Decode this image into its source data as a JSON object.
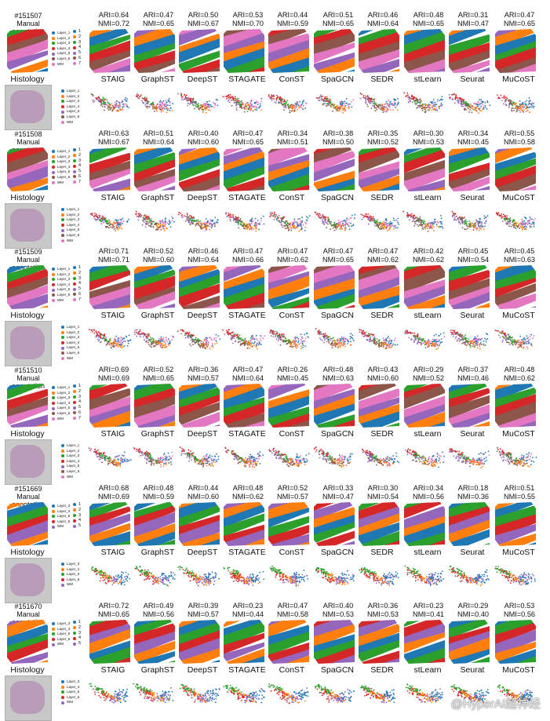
{
  "palette": [
    "#1f77b4",
    "#ff7f0e",
    "#2ca02c",
    "#d62728",
    "#9467bd",
    "#8c564b",
    "#e377c2"
  ],
  "methods": [
    "STAIG",
    "GraphST",
    "DeepST",
    "STAGATE",
    "ConST",
    "SpaGCN",
    "SEDR",
    "stLearn",
    "Seurat",
    "MuCoST"
  ],
  "histology_label": "Histology",
  "annotation_label": "Manual annotation",
  "watermark": "@HyperAI超神经",
  "samples": [
    {
      "id": "#151507",
      "legend": [
        "Layer_1",
        "Layer_2",
        "Layer_3",
        "Layer_4",
        "Layer_5",
        "Layer_6",
        "WM"
      ],
      "cluster_ids": [
        "1",
        "2",
        "3",
        "4",
        "5",
        "6",
        "7"
      ],
      "ari": [
        "ARI=0.64",
        "ARI=0.47",
        "ARI=0.50",
        "ARI=0.53",
        "ARI=0.44",
        "ARI=0.51",
        "ARI=0.46",
        "ARI=0.48",
        "ARI=0.31",
        "ARI=0.47"
      ],
      "nmi": [
        "NMI=0.72",
        "NMI=0.65",
        "NMI=0.67",
        "NMI=0.70",
        "NMI=0.59",
        "NMI=0.65",
        "NMI=0.64",
        "NMI=0.65",
        "NMI=0.47",
        "NMI=0.65"
      ]
    },
    {
      "id": "#151508",
      "legend": [
        "Layer_1",
        "Layer_2",
        "Layer_3",
        "Layer_4",
        "Layer_5",
        "Layer_6",
        "WM"
      ],
      "cluster_ids": [
        "1",
        "2",
        "3",
        "4",
        "5",
        "6",
        "7"
      ],
      "ari": [
        "ARI=0.63",
        "ARI=0.51",
        "ARI=0.40",
        "ARI=0.47",
        "ARI=0.34",
        "ARI=0.38",
        "ARI=0.35",
        "ARI=0.30",
        "ARI=0.34",
        "ARI=0.55"
      ],
      "nmi": [
        "NMI=0.67",
        "NMI=0.64",
        "NMI=0.60",
        "NMI=0.65",
        "NMI=0.51",
        "NMI=0.50",
        "NMI=0.52",
        "NMI=0.53",
        "NMI=0.45",
        "NMI=0.58"
      ]
    },
    {
      "id": "#151509",
      "legend": [
        "Layer_1",
        "Layer_2",
        "Layer_3",
        "Layer_4",
        "Layer_5",
        "Layer_6",
        "WM"
      ],
      "cluster_ids": [
        "1",
        "2",
        "3",
        "4",
        "5",
        "6",
        "7"
      ],
      "ari": [
        "ARI=0.71",
        "ARI=0.52",
        "ARI=0.46",
        "ARI=0.47",
        "ARI=0.47",
        "ARI=0.47",
        "ARI=0.47",
        "ARI=0.42",
        "ARI=0.45",
        "ARI=0.45"
      ],
      "nmi": [
        "NMI=0.71",
        "NMI=0.60",
        "NMI=0.64",
        "NMI=0.66",
        "NMI=0.62",
        "NMI=0.65",
        "NMI=0.62",
        "NMI=0.62",
        "NMI=0.54",
        "NMI=0.63"
      ]
    },
    {
      "id": "#151510",
      "legend": [
        "Layer_1",
        "Layer_2",
        "Layer_3",
        "Layer_4",
        "Layer_5",
        "Layer_6",
        "WM"
      ],
      "cluster_ids": [
        "1",
        "2",
        "3",
        "4",
        "5",
        "6",
        "7"
      ],
      "ari": [
        "ARI=0.69",
        "ARI=0.52",
        "ARI=0.36",
        "ARI=0.47",
        "ARI=0.26",
        "ARI=0.48",
        "ARI=0.43",
        "ARI=0.29",
        "ARI=0.37",
        "ARI=0.48"
      ],
      "nmi": [
        "NMI=0.69",
        "NMI=0.65",
        "NMI=0.57",
        "NMI=0.64",
        "NMI=0.45",
        "NMI=0.63",
        "NMI=0.60",
        "NMI=0.52",
        "NMI=0.46",
        "NMI=0.62"
      ]
    },
    {
      "id": "#151669",
      "legend": [
        "Layer_3",
        "Layer_4",
        "Layer_5",
        "Layer_6",
        "WM"
      ],
      "cluster_ids": [
        "1",
        "2",
        "3",
        "4",
        "5"
      ],
      "ari": [
        "ARI=0.68",
        "ARI=0.48",
        "ARI=0.44",
        "ARI=0.48",
        "ARI=0.52",
        "ARI=0.33",
        "ARI=0.30",
        "ARI=0.34",
        "ARI=0.18",
        "ARI=0.51"
      ],
      "nmi": [
        "NMI=0.69",
        "NMI=0.59",
        "NMI=0.60",
        "NMI=0.62",
        "NMI=0.57",
        "NMI=0.47",
        "NMI=0.54",
        "NMI=0.56",
        "NMI=0.36",
        "NMI=0.55"
      ]
    },
    {
      "id": "#151670",
      "legend": [
        "Layer_3",
        "Layer_4",
        "Layer_5",
        "Layer_6",
        "WM"
      ],
      "cluster_ids": [
        "1",
        "2",
        "3",
        "4",
        "5"
      ],
      "ari": [
        "ARI=0.72",
        "ARI=0.49",
        "ARI=0.39",
        "ARI=0.23",
        "ARI=0.47",
        "ARI=0.40",
        "ARI=0.36",
        "ARI=0.23",
        "ARI=0.29",
        "ARI=0.53"
      ],
      "nmi": [
        "NMI=0.65",
        "NMI=0.56",
        "NMI=0.57",
        "NMI=0.44",
        "NMI=0.58",
        "NMI=0.53",
        "NMI=0.53",
        "NMI=0.41",
        "NMI=0.40",
        "NMI=0.56"
      ]
    }
  ],
  "chart_data": {
    "type": "table",
    "columns": [
      "STAIG",
      "GraphST",
      "DeepST",
      "STAGATE",
      "ConST",
      "SpaGCN",
      "SEDR",
      "stLearn",
      "Seurat",
      "MuCoST"
    ],
    "rows": [
      {
        "sample": "#151507",
        "ARI": [
          0.64,
          0.47,
          0.5,
          0.53,
          0.44,
          0.51,
          0.46,
          0.48,
          0.31,
          0.47
        ],
        "NMI": [
          0.72,
          0.65,
          0.67,
          0.7,
          0.59,
          0.65,
          0.64,
          0.65,
          0.47,
          0.65
        ]
      },
      {
        "sample": "#151508",
        "ARI": [
          0.63,
          0.51,
          0.4,
          0.47,
          0.34,
          0.38,
          0.35,
          0.3,
          0.34,
          0.55
        ],
        "NMI": [
          0.67,
          0.64,
          0.6,
          0.65,
          0.51,
          0.5,
          0.52,
          0.53,
          0.45,
          0.58
        ]
      },
      {
        "sample": "#151509",
        "ARI": [
          0.71,
          0.52,
          0.46,
          0.47,
          0.47,
          0.47,
          0.47,
          0.42,
          0.45,
          0.45
        ],
        "NMI": [
          0.71,
          0.6,
          0.64,
          0.66,
          0.62,
          0.65,
          0.62,
          0.62,
          0.54,
          0.63
        ]
      },
      {
        "sample": "#151510",
        "ARI": [
          0.69,
          0.52,
          0.36,
          0.47,
          0.26,
          0.48,
          0.43,
          0.29,
          0.37,
          0.48
        ],
        "NMI": [
          0.69,
          0.65,
          0.57,
          0.64,
          0.45,
          0.63,
          0.6,
          0.52,
          0.46,
          0.62
        ]
      },
      {
        "sample": "#151669",
        "ARI": [
          0.68,
          0.48,
          0.44,
          0.48,
          0.52,
          0.33,
          0.3,
          0.34,
          0.18,
          0.51
        ],
        "NMI": [
          0.69,
          0.59,
          0.6,
          0.62,
          0.57,
          0.47,
          0.54,
          0.56,
          0.36,
          0.55
        ]
      },
      {
        "sample": "#151670",
        "ARI": [
          0.72,
          0.49,
          0.39,
          0.23,
          0.47,
          0.4,
          0.36,
          0.23,
          0.29,
          0.53
        ],
        "NMI": [
          0.65,
          0.56,
          0.57,
          0.44,
          0.58,
          0.53,
          0.53,
          0.41,
          0.4,
          0.56
        ]
      }
    ]
  }
}
